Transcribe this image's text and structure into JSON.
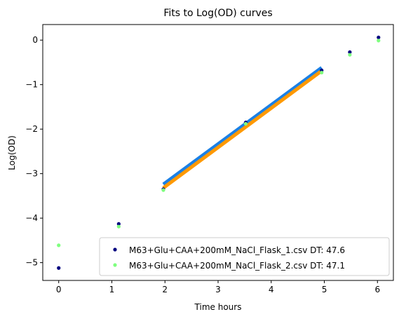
{
  "chart_data": {
    "type": "scatter",
    "title": "Fits to Log(OD) curves",
    "xlabel": "Time hours",
    "ylabel": "Log(OD)",
    "xlim": [
      -0.3,
      6.3
    ],
    "ylim": [
      -5.4,
      0.35
    ],
    "xticks": [
      0,
      1,
      2,
      3,
      4,
      5,
      6
    ],
    "yticks": [
      0,
      -1,
      -2,
      -3,
      -4,
      -5
    ],
    "ytick_labels": [
      "0",
      "−1",
      "−2",
      "−3",
      "−4",
      "−5"
    ],
    "legend_position": "lower-right",
    "series": [
      {
        "name": "M63+Glu+CAA+200mM_NaCl_Flask_1.csv DT: 47.6",
        "color": "#00007f",
        "x": [
          0,
          1.13,
          1.97,
          3.52,
          4.95,
          5.48,
          6.02
        ],
        "y": [
          -5.12,
          -4.13,
          -3.35,
          -1.85,
          -0.68,
          -0.27,
          0.06
        ]
      },
      {
        "name": "M63+Glu+CAA+200mM_NaCl_Flask_2.csv DT: 47.1",
        "color": "#7fff7f",
        "x": [
          0,
          1.13,
          1.97,
          3.52,
          4.95,
          5.48,
          6.02
        ],
        "y": [
          -4.61,
          -4.19,
          -3.37,
          -1.88,
          -0.73,
          -0.33,
          -0.01
        ]
      }
    ],
    "fit_lines": [
      {
        "color": "#1a80e6",
        "x": [
          1.97,
          4.95
        ],
        "y": [
          -3.24,
          -0.62
        ]
      },
      {
        "color": "#ff9900",
        "x": [
          1.97,
          4.95
        ],
        "y": [
          -3.32,
          -0.69
        ]
      }
    ]
  }
}
